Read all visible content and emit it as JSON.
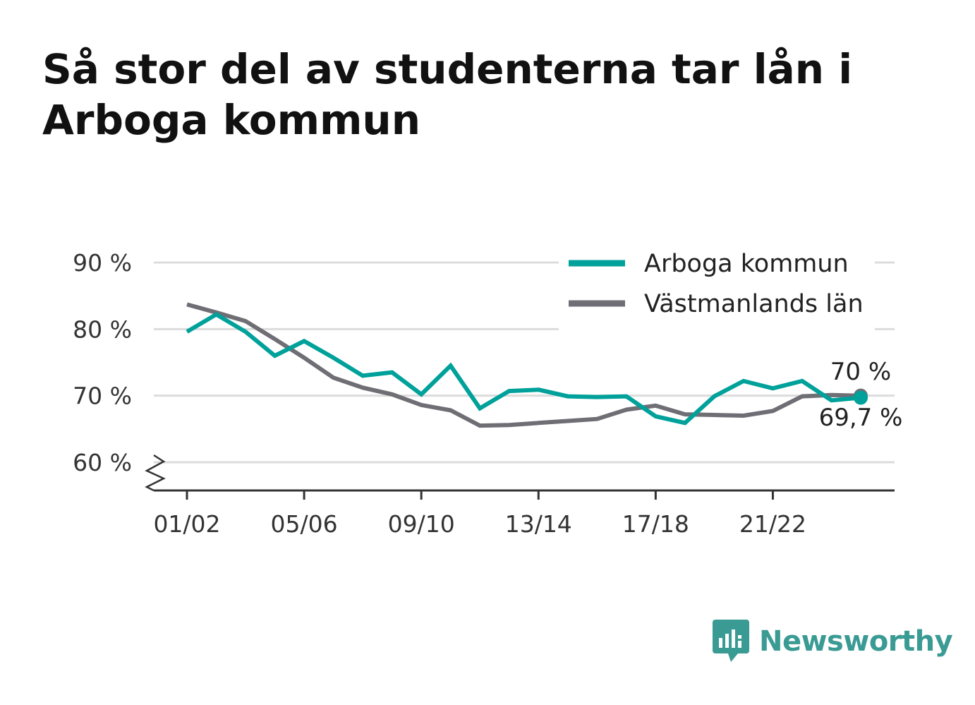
{
  "title": "Så stor del av studenterna tar lån i Arboga kommun",
  "brand": {
    "name": "Newsworthy",
    "icon": "newsworthy-logo-icon",
    "color": "#3a9a94"
  },
  "chart_data": {
    "type": "line",
    "title": "Så stor del av studenterna tar lån i Arboga kommun",
    "xlabel": "",
    "ylabel": "",
    "x": [
      "01/02",
      "02/03",
      "03/04",
      "04/05",
      "05/06",
      "06/07",
      "07/08",
      "08/09",
      "09/10",
      "10/11",
      "11/12",
      "12/13",
      "13/14",
      "14/15",
      "15/16",
      "16/17",
      "17/18",
      "18/19",
      "19/20",
      "20/21",
      "21/22",
      "22/23",
      "23/24",
      "24/25"
    ],
    "x_tick_labels": [
      "01/02",
      "05/06",
      "09/10",
      "13/14",
      "17/18",
      "21/22"
    ],
    "y_ticks": [
      60,
      70,
      80,
      90
    ],
    "y_tick_labels": [
      "60 %",
      "70 %",
      "80 %",
      "90 %"
    ],
    "ylim": [
      56.5,
      91
    ],
    "y_axis_break": true,
    "grid": true,
    "legend_position": "top-right",
    "series": [
      {
        "name": "Arboga kommun",
        "color": "#00a19a",
        "values": [
          79.6,
          82.2,
          79.6,
          76.0,
          78.2,
          75.7,
          73.0,
          73.5,
          70.2,
          74.5,
          68.1,
          70.7,
          70.9,
          69.9,
          69.8,
          69.9,
          66.9,
          65.9,
          69.9,
          72.2,
          71.1,
          72.2,
          69.3,
          69.7
        ],
        "end_label": "69,7 %"
      },
      {
        "name": "Västmanlands län",
        "color": "#6f6e75",
        "values": [
          83.7,
          82.5,
          81.2,
          78.5,
          75.7,
          72.7,
          71.2,
          70.2,
          68.6,
          67.8,
          65.5,
          65.6,
          65.9,
          66.2,
          66.5,
          67.9,
          68.5,
          67.2,
          67.1,
          67.0,
          67.7,
          69.9,
          70.1,
          70.0
        ],
        "end_label": "70 %"
      }
    ]
  }
}
